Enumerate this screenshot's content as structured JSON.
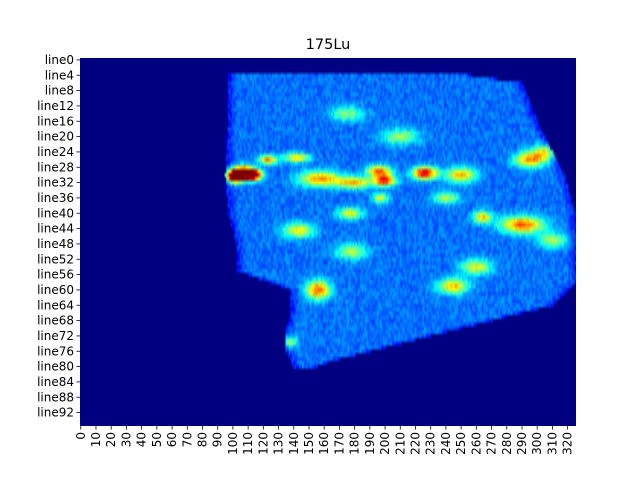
{
  "chart_data": {
    "type": "heatmap",
    "title": "175Lu",
    "xlabel": "",
    "ylabel": "",
    "colormap": "jet",
    "n_rows": 96,
    "n_cols": 326,
    "background_color": "#00007f",
    "xlim": [
      0,
      326
    ],
    "row_prefix": "line",
    "y_tick_labels": [
      "line0",
      "line4",
      "line8",
      "line12",
      "line16",
      "line20",
      "line24",
      "line28",
      "line32",
      "line36",
      "line40",
      "line44",
      "line48",
      "line52",
      "line56",
      "line60",
      "line64",
      "line68",
      "line72",
      "line76",
      "line80",
      "line84",
      "line88",
      "line92"
    ],
    "x_tick_labels": [
      "0",
      "10",
      "20",
      "30",
      "40",
      "50",
      "60",
      "70",
      "80",
      "90",
      "100",
      "110",
      "120",
      "130",
      "140",
      "150",
      "160",
      "170",
      "180",
      "190",
      "200",
      "210",
      "220",
      "230",
      "240",
      "250",
      "260",
      "270",
      "280",
      "290",
      "300",
      "310",
      "320"
    ],
    "region": {
      "left_edge_by_row": [
        [
          5,
          97
        ],
        [
          12,
          97
        ],
        [
          20,
          96
        ],
        [
          25,
          96
        ],
        [
          30,
          95
        ],
        [
          40,
          97
        ],
        [
          48,
          102
        ],
        [
          55,
          103
        ],
        [
          60,
          138
        ],
        [
          66,
          138
        ],
        [
          70,
          135
        ],
        [
          76,
          135
        ],
        [
          80,
          140
        ]
      ],
      "right_edge_by_row": [
        [
          3,
          240
        ],
        [
          6,
          290
        ],
        [
          20,
          305
        ],
        [
          30,
          318
        ],
        [
          40,
          325
        ],
        [
          55,
          326
        ],
        [
          58,
          326
        ],
        [
          64,
          310
        ],
        [
          70,
          250
        ],
        [
          78,
          170
        ],
        [
          80,
          155
        ]
      ],
      "top_row": 4,
      "bottom_row": 80
    },
    "hotspots": [
      {
        "row": 29.5,
        "col": 106,
        "intensity": 1.0,
        "width": 7,
        "height": 1.6
      },
      {
        "row": 30.5,
        "col": 101,
        "intensity": 0.92,
        "width": 5,
        "height": 1.4
      },
      {
        "row": 30,
        "col": 113,
        "intensity": 0.85,
        "width": 6,
        "height": 1.4
      },
      {
        "row": 29.5,
        "col": 226,
        "intensity": 0.7,
        "width": 8,
        "height": 1.6
      },
      {
        "row": 31.5,
        "col": 200,
        "intensity": 0.62,
        "width": 7,
        "height": 1.4
      },
      {
        "row": 29,
        "col": 196,
        "intensity": 0.55,
        "width": 8,
        "height": 1.5
      },
      {
        "row": 31,
        "col": 157,
        "intensity": 0.5,
        "width": 14,
        "height": 2
      },
      {
        "row": 32,
        "col": 180,
        "intensity": 0.45,
        "width": 12,
        "height": 1.5
      },
      {
        "row": 30,
        "col": 250,
        "intensity": 0.45,
        "width": 10,
        "height": 2
      },
      {
        "row": 26,
        "col": 123,
        "intensity": 0.5,
        "width": 6,
        "height": 1.2
      },
      {
        "row": 25.5,
        "col": 142,
        "intensity": 0.45,
        "width": 8,
        "height": 1.2
      },
      {
        "row": 26,
        "col": 295,
        "intensity": 0.5,
        "width": 10,
        "height": 2
      },
      {
        "row": 24,
        "col": 305,
        "intensity": 0.35,
        "width": 8,
        "height": 2
      },
      {
        "row": 43,
        "col": 290,
        "intensity": 0.55,
        "width": 14,
        "height": 2.2
      },
      {
        "row": 41,
        "col": 264,
        "intensity": 0.45,
        "width": 6,
        "height": 1.5
      },
      {
        "row": 40,
        "col": 177,
        "intensity": 0.4,
        "width": 8,
        "height": 1.5
      },
      {
        "row": 44.5,
        "col": 143,
        "intensity": 0.4,
        "width": 10,
        "height": 2
      },
      {
        "row": 60,
        "col": 156,
        "intensity": 0.55,
        "width": 8,
        "height": 2.5
      },
      {
        "row": 59,
        "col": 245,
        "intensity": 0.45,
        "width": 10,
        "height": 2
      },
      {
        "row": 54,
        "col": 260,
        "intensity": 0.38,
        "width": 10,
        "height": 2
      },
      {
        "row": 36,
        "col": 197,
        "intensity": 0.4,
        "width": 5,
        "height": 1.2
      },
      {
        "row": 36,
        "col": 240,
        "intensity": 0.35,
        "width": 8,
        "height": 1.5
      },
      {
        "row": 73.5,
        "col": 137,
        "intensity": 0.35,
        "width": 5,
        "height": 1.5
      },
      {
        "row": 50,
        "col": 178,
        "intensity": 0.32,
        "width": 10,
        "height": 2
      },
      {
        "row": 20,
        "col": 210,
        "intensity": 0.3,
        "width": 12,
        "height": 2
      },
      {
        "row": 14,
        "col": 175,
        "intensity": 0.28,
        "width": 10,
        "height": 2
      },
      {
        "row": 47,
        "col": 310,
        "intensity": 0.3,
        "width": 10,
        "height": 2
      }
    ],
    "base_level": 0.22,
    "noise_level": 0.1,
    "grid": false,
    "legend": false
  }
}
